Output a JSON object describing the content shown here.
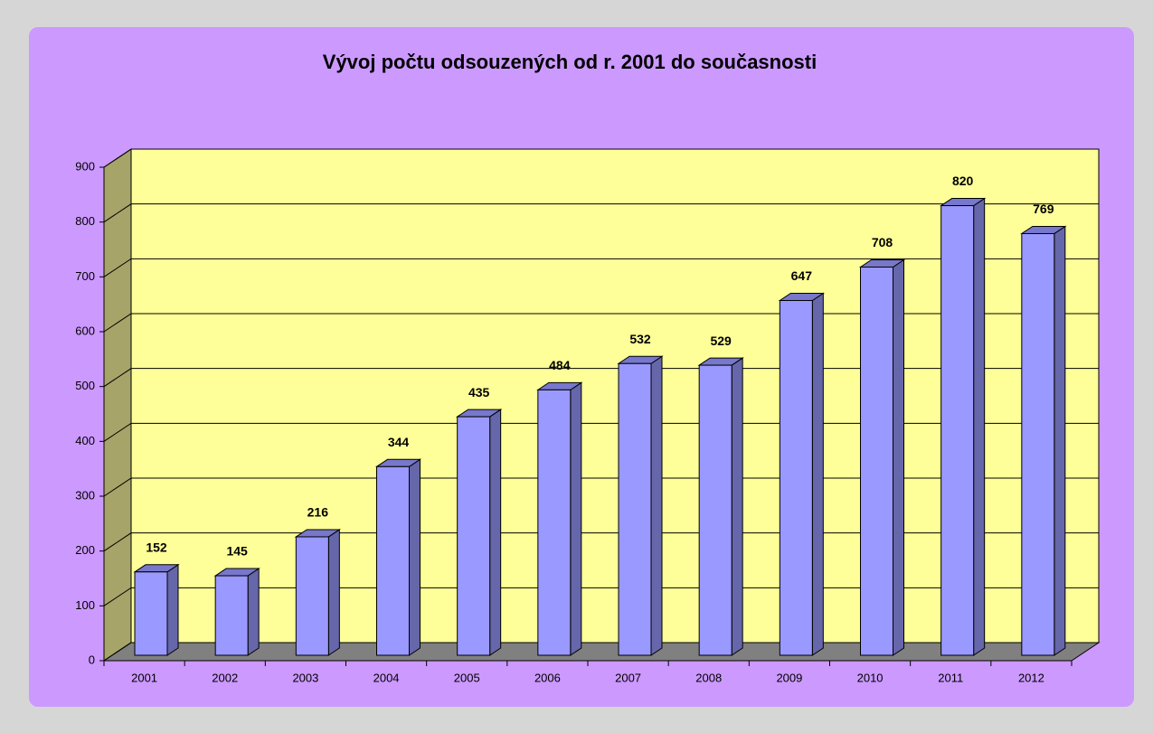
{
  "chart_data": {
    "type": "bar",
    "title": "Vývoj počtu odsouzených od r. 2001 do současnosti",
    "categories": [
      "2001",
      "2002",
      "2003",
      "2004",
      "2005",
      "2006",
      "2007",
      "2008",
      "2009",
      "2010",
      "2011",
      "2012"
    ],
    "values": [
      152,
      145,
      216,
      344,
      435,
      484,
      532,
      529,
      647,
      708,
      820,
      769
    ],
    "color": "#9999ff",
    "ylim": [
      0,
      900
    ],
    "yticks": [
      0,
      100,
      200,
      300,
      400,
      500,
      600,
      700,
      800,
      900
    ],
    "grid": true
  }
}
